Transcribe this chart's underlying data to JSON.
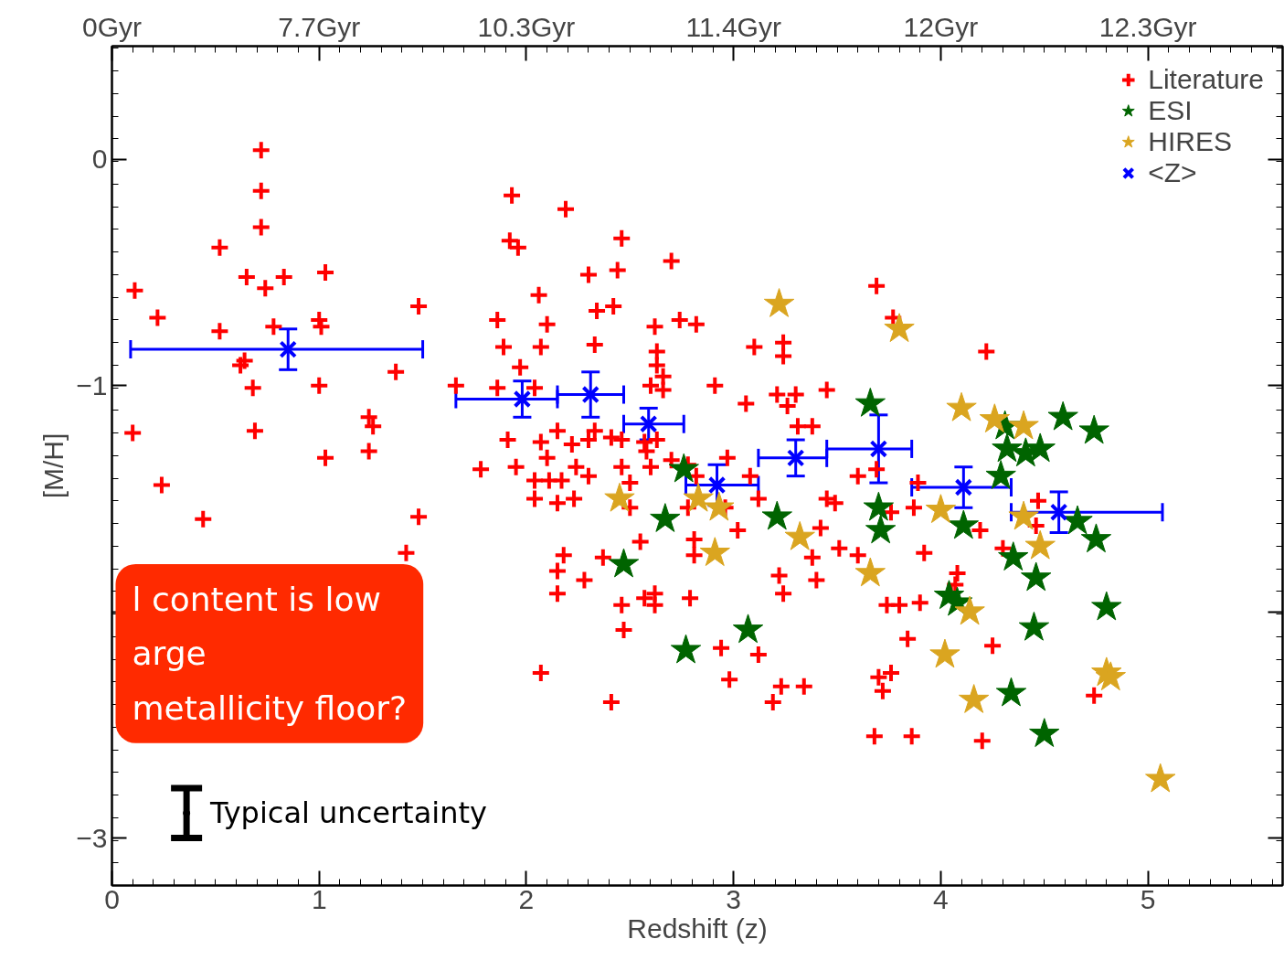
{
  "chart_data": {
    "type": "scatter",
    "xlabel": "Redshift (z)",
    "ylabel": "[M/H]",
    "xlim": [
      0,
      5.65
    ],
    "xticks": [
      0,
      1,
      2,
      3,
      4,
      5
    ],
    "ylim": [
      -3.21,
      0.5
    ],
    "yticks": [
      {
        "value": -3,
        "label": "−3"
      },
      {
        "value": -2,
        "label": null
      },
      {
        "value": -1,
        "label": "−1"
      },
      0
    ],
    "grid": false,
    "legend": "top right",
    "series": [
      {
        "name": "Literature",
        "color": "#ff0000",
        "marker": "cross",
        "x": [
          0.11,
          0.1,
          0.22,
          0.24,
          0.44,
          0.52,
          0.52,
          0.65,
          0.72,
          0.72,
          0.72,
          0.74,
          0.78,
          0.62,
          0.64,
          0.68,
          0.69,
          0.83,
          1.03,
          1.0,
          1.01,
          1.0,
          1.03,
          1.24,
          1.26,
          1.24,
          1.37,
          1.48,
          1.48,
          1.42,
          1.93,
          2.19,
          1.92,
          1.96,
          2.46,
          2.3,
          2.44,
          2.06,
          1.86,
          2.1,
          2.34,
          2.42,
          1.89,
          2.07,
          2.33,
          2.62,
          2.74,
          2.82,
          2.7,
          1.97,
          1.66,
          1.86,
          2.04,
          2.63,
          2.63,
          2.66,
          2.6,
          2.66,
          2.91,
          3.1,
          3.24,
          3.24,
          3.06,
          3.21,
          3.3,
          3.45,
          3.26,
          3.31,
          3.38,
          3.69,
          3.77,
          4.22,
          1.91,
          2.07,
          1.78,
          1.95,
          2.1,
          2.15,
          2.22,
          2.3,
          2.33,
          2.41,
          2.46,
          2.57,
          2.04,
          2.11,
          2.17,
          2.3,
          2.24,
          2.46,
          2.6,
          2.5,
          2.04,
          2.15,
          2.23,
          2.58,
          2.63,
          2.97,
          3.12,
          2.96,
          3.02,
          2.7,
          2.78,
          2.82,
          3.08,
          2.5,
          2.55,
          2.37,
          2.78,
          2.18,
          2.15,
          2.28,
          2.15,
          2.46,
          2.47,
          2.57,
          2.62,
          2.62,
          2.79,
          2.07,
          2.41,
          2.81,
          2.81,
          2.94,
          3.12,
          2.98,
          3.19,
          3.23,
          3.34,
          3.22,
          3.24,
          3.38,
          3.4,
          3.42,
          3.45,
          3.49,
          3.6,
          3.69,
          3.6,
          3.51,
          3.76,
          3.87,
          3.92,
          4.08,
          4.05,
          3.74,
          3.8,
          3.9,
          3.84,
          4.25,
          3.7,
          3.76,
          3.72,
          3.68,
          3.86,
          4.2,
          4.19,
          4.3,
          4.47,
          4.74,
          4.46,
          3.89,
          4.07
        ],
        "values": [
          -0.58,
          -1.21,
          -0.7,
          -1.44,
          -1.59,
          -0.39,
          -0.76,
          -0.52,
          0.04,
          -0.14,
          -0.3,
          -0.57,
          -0.74,
          -0.91,
          -0.89,
          -1.01,
          -1.2,
          -0.52,
          -0.5,
          -0.71,
          -0.74,
          -1.0,
          -1.32,
          -1.14,
          -1.18,
          -1.29,
          -0.94,
          -0.65,
          -1.58,
          -1.74,
          -0.16,
          -0.22,
          -0.36,
          -0.39,
          -0.35,
          -0.51,
          -0.49,
          -0.6,
          -0.71,
          -0.73,
          -0.67,
          -0.65,
          -0.83,
          -0.83,
          -0.82,
          -0.74,
          -0.71,
          -0.73,
          -0.45,
          -0.92,
          -1.0,
          -1.01,
          -1.01,
          -0.85,
          -0.91,
          -0.96,
          -1.0,
          -1.02,
          -1.0,
          -0.83,
          -0.81,
          -0.87,
          -1.08,
          -1.04,
          -1.04,
          -1.02,
          -1.09,
          -1.18,
          -1.18,
          -0.56,
          -0.7,
          -0.85,
          -1.24,
          -1.25,
          -1.37,
          -1.36,
          -1.32,
          -1.2,
          -1.26,
          -1.24,
          -1.2,
          -1.23,
          -1.24,
          -1.25,
          -1.42,
          -1.42,
          -1.42,
          -1.4,
          -1.36,
          -1.36,
          -1.36,
          -1.43,
          -1.5,
          -1.52,
          -1.5,
          -1.29,
          -1.24,
          -1.32,
          -1.5,
          -1.54,
          -1.64,
          -1.33,
          -1.35,
          -1.4,
          -1.4,
          -1.54,
          -1.69,
          -1.76,
          -1.54,
          -1.75,
          -1.82,
          -1.86,
          -1.92,
          -1.97,
          -2.08,
          -1.94,
          -1.97,
          -1.92,
          -1.94,
          -2.27,
          -2.4,
          -1.68,
          -1.75,
          -2.16,
          -2.19,
          -2.3,
          -2.4,
          -2.33,
          -2.33,
          -1.84,
          -1.92,
          -1.76,
          -1.86,
          -1.63,
          -1.5,
          -1.52,
          -1.4,
          -1.37,
          -1.75,
          -1.72,
          -1.56,
          -1.54,
          -1.74,
          -1.83,
          -1.92,
          -1.97,
          -1.97,
          -1.96,
          -2.12,
          -2.15,
          -2.29,
          -2.27,
          -2.35,
          -2.55,
          -2.55,
          -2.57,
          -1.64,
          -1.72,
          -1.51,
          -2.37,
          -1.62,
          -1.43,
          -1.88
        ]
      },
      {
        "name": "ESI",
        "color": "#006400",
        "marker": "star",
        "x": [
          2.76,
          2.67,
          2.47,
          2.77,
          3.07,
          3.21,
          3.66,
          3.7,
          3.71,
          4.04,
          4.08,
          4.11,
          4.31,
          4.32,
          4.41,
          4.48,
          4.29,
          4.59,
          4.74,
          4.35,
          4.46,
          4.66,
          4.75,
          4.8,
          4.45,
          4.34,
          4.5
        ],
        "values": [
          -1.37,
          -1.59,
          -1.79,
          -2.17,
          -2.08,
          -1.58,
          -1.08,
          -1.54,
          -1.64,
          -1.93,
          -1.96,
          -1.62,
          -1.18,
          -1.28,
          -1.3,
          -1.28,
          -1.4,
          -1.14,
          -1.2,
          -1.76,
          -1.85,
          -1.6,
          -1.68,
          -1.98,
          -2.07,
          -2.36,
          -2.54
        ]
      },
      {
        "name": "HIRES",
        "color": "#daa520",
        "marker": "star",
        "x": [
          3.22,
          3.8,
          4.1,
          4.26,
          4.4,
          2.45,
          2.83,
          2.93,
          2.91,
          3.32,
          3.66,
          4.0,
          4.14,
          4.02,
          4.16,
          4.4,
          4.48,
          4.8,
          4.82,
          5.06
        ],
        "values": [
          -0.64,
          -0.75,
          -1.1,
          -1.15,
          -1.18,
          -1.5,
          -1.5,
          -1.54,
          -1.74,
          -1.67,
          -1.83,
          -1.55,
          -2.0,
          -2.19,
          -2.39,
          -1.58,
          -1.71,
          -2.27,
          -2.29,
          -2.74
        ]
      },
      {
        "name": "<Z>",
        "color": "#0000ff",
        "marker": "x",
        "x": [
          0.85,
          1.98,
          2.31,
          2.59,
          2.92,
          3.3,
          3.7,
          4.11,
          4.57
        ],
        "values": [
          -0.84,
          -1.06,
          -1.04,
          -1.17,
          -1.44,
          -1.32,
          -1.28,
          -1.45,
          -1.56
        ],
        "errors": [
          0.09,
          0.08,
          0.1,
          0.07,
          0.09,
          0.08,
          0.15,
          0.09,
          0.09
        ],
        "xerrors": [
          [
            0.09,
            1.5
          ],
          [
            1.66,
            2.15
          ],
          [
            2.15,
            2.47
          ],
          [
            2.47,
            2.76
          ],
          [
            2.77,
            3.12
          ],
          [
            3.12,
            3.45
          ],
          [
            3.45,
            3.86
          ],
          [
            3.86,
            4.34
          ],
          [
            4.34,
            5.07
          ]
        ]
      },
      {
        "color": "#000000",
        "marker": "circle",
        "x": [
          0.36
        ],
        "values": [
          -2.89
        ],
        "errors": [
          0.11
        ]
      }
    ],
    "annotations": [
      "l content is low\narge\nmetallicity floor?",
      {
        "text": "Typical uncertainty",
        "x": 0.36,
        "y": -2.89
      },
      "0Gyr",
      "7.7Gyr",
      "10.3Gyr",
      "11.4Gyr",
      "12Gyr",
      "12.3Gyr"
    ]
  }
}
